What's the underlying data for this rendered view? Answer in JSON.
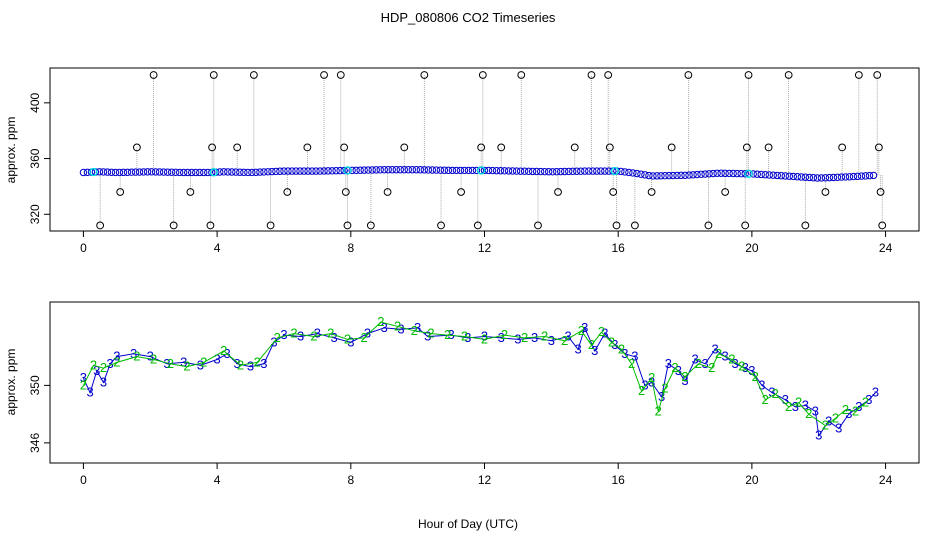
{
  "title": "HDP_080806  CO2 Timeseries",
  "xlabel": "Hour of Day (UTC)",
  "colors": {
    "cyan": "#00e0e0",
    "blue": "#0000cc",
    "green": "#00bb00",
    "black": "#000000",
    "gray": "#999999"
  },
  "chart_data": [
    {
      "type": "scatter",
      "panel": "top",
      "ylabel": "approx. ppm",
      "xlim": [
        -1,
        25
      ],
      "ylim": [
        308,
        425
      ],
      "x_ticks": [
        0,
        4,
        8,
        12,
        16,
        20,
        24
      ],
      "y_ticks": [
        320,
        360,
        400
      ],
      "x_tick_labels": [
        "0",
        "4",
        "8",
        "12",
        "16",
        "20",
        "24"
      ],
      "y_tick_labels": [
        "320",
        "360",
        "400"
      ],
      "baseline": [
        [
          0,
          350
        ],
        [
          0.5,
          350.5
        ],
        [
          1,
          350
        ],
        [
          2,
          350.5
        ],
        [
          3,
          350
        ],
        [
          3.8,
          350
        ],
        [
          4.2,
          350.5
        ],
        [
          5,
          350
        ],
        [
          6,
          351
        ],
        [
          7,
          351
        ],
        [
          8,
          351.5
        ],
        [
          9,
          352
        ],
        [
          10,
          352
        ],
        [
          11,
          351.5
        ],
        [
          12,
          351.5
        ],
        [
          13,
          351
        ],
        [
          14,
          350.5
        ],
        [
          15,
          351
        ],
        [
          16,
          351
        ],
        [
          16.5,
          349.5
        ],
        [
          17,
          347.5
        ],
        [
          18,
          348
        ],
        [
          19,
          349.5
        ],
        [
          20,
          349
        ],
        [
          21,
          347.5
        ],
        [
          22,
          346
        ],
        [
          23,
          347
        ],
        [
          23.7,
          348
        ]
      ],
      "spikes": [
        [
          0.5,
          312
        ],
        [
          1.1,
          336
        ],
        [
          1.6,
          368
        ],
        [
          2.1,
          420
        ],
        [
          2.7,
          312
        ],
        [
          3.2,
          336
        ],
        [
          3.8,
          312
        ],
        [
          3.85,
          368
        ],
        [
          3.9,
          420
        ],
        [
          4.6,
          368
        ],
        [
          5.1,
          420
        ],
        [
          5.6,
          312
        ],
        [
          6.1,
          336
        ],
        [
          6.7,
          368
        ],
        [
          7.2,
          420
        ],
        [
          7.7,
          420
        ],
        [
          7.8,
          368
        ],
        [
          7.85,
          336
        ],
        [
          7.9,
          312
        ],
        [
          8.6,
          312
        ],
        [
          9.1,
          336
        ],
        [
          9.6,
          368
        ],
        [
          10.2,
          420
        ],
        [
          10.7,
          312
        ],
        [
          11.3,
          336
        ],
        [
          11.8,
          312
        ],
        [
          11.9,
          368
        ],
        [
          11.95,
          420
        ],
        [
          12.5,
          368
        ],
        [
          13.1,
          420
        ],
        [
          13.6,
          312
        ],
        [
          14.2,
          336
        ],
        [
          14.7,
          368
        ],
        [
          15.2,
          420
        ],
        [
          15.7,
          420
        ],
        [
          15.75,
          368
        ],
        [
          15.85,
          336
        ],
        [
          15.95,
          312
        ],
        [
          16.5,
          312
        ],
        [
          17.0,
          336
        ],
        [
          17.6,
          368
        ],
        [
          18.1,
          420
        ],
        [
          18.7,
          312
        ],
        [
          19.2,
          336
        ],
        [
          19.8,
          312
        ],
        [
          19.85,
          368
        ],
        [
          19.9,
          420
        ],
        [
          20.5,
          368
        ],
        [
          21.1,
          420
        ],
        [
          21.6,
          312
        ],
        [
          22.2,
          336
        ],
        [
          22.7,
          368
        ],
        [
          23.2,
          420
        ],
        [
          23.75,
          420
        ],
        [
          23.8,
          368
        ],
        [
          23.85,
          336
        ],
        [
          23.9,
          312
        ]
      ]
    },
    {
      "type": "line",
      "panel": "bottom",
      "ylabel": "approx. ppm",
      "xlim": [
        -1,
        25
      ],
      "ylim": [
        344.6,
        355.8
      ],
      "x_ticks": [
        0,
        4,
        8,
        12,
        16,
        20,
        24
      ],
      "y_ticks": [
        346,
        350
      ],
      "x_tick_labels": [
        "0",
        "4",
        "8",
        "12",
        "16",
        "20",
        "24"
      ],
      "y_tick_labels": [
        "346",
        "350"
      ],
      "series": [
        {
          "name": "3",
          "color": "#0000cc",
          "points": [
            [
              0,
              350.5
            ],
            [
              0.2,
              349.5
            ],
            [
              0.4,
              351
            ],
            [
              0.6,
              350.2
            ],
            [
              0.8,
              351.5
            ],
            [
              1,
              352
            ],
            [
              1.5,
              352.2
            ],
            [
              2,
              352
            ],
            [
              2.5,
              351.5
            ],
            [
              3,
              351.6
            ],
            [
              3.5,
              351.4
            ],
            [
              4,
              351.8
            ],
            [
              4.3,
              352.2
            ],
            [
              4.6,
              351.5
            ],
            [
              5,
              351.3
            ],
            [
              5.4,
              351.5
            ],
            [
              5.7,
              353
            ],
            [
              6,
              353.5
            ],
            [
              6.5,
              353.4
            ],
            [
              7,
              353.6
            ],
            [
              7.5,
              353.3
            ],
            [
              8,
              353
            ],
            [
              8.5,
              353.6
            ],
            [
              9,
              354
            ],
            [
              9.5,
              353.9
            ],
            [
              10,
              354
            ],
            [
              10.3,
              353.4
            ],
            [
              11,
              353.5
            ],
            [
              11.5,
              353.3
            ],
            [
              12,
              353.4
            ],
            [
              12.5,
              353.3
            ],
            [
              13,
              353.2
            ],
            [
              13.5,
              353.3
            ],
            [
              14,
              353.1
            ],
            [
              14.5,
              353.4
            ],
            [
              14.8,
              352.5
            ],
            [
              15,
              354
            ],
            [
              15.3,
              352.4
            ],
            [
              15.6,
              353.6
            ],
            [
              15.9,
              352.8
            ],
            [
              16.2,
              352.2
            ],
            [
              16.5,
              352
            ],
            [
              16.8,
              350
            ],
            [
              17,
              350.2
            ],
            [
              17.3,
              349.2
            ],
            [
              17.5,
              351.5
            ],
            [
              17.8,
              351
            ],
            [
              18,
              350.3
            ],
            [
              18.3,
              351.8
            ],
            [
              18.6,
              351.5
            ],
            [
              18.9,
              352.5
            ],
            [
              19.2,
              352
            ],
            [
              19.5,
              351.5
            ],
            [
              19.8,
              351.2
            ],
            [
              20,
              351
            ],
            [
              20.3,
              350
            ],
            [
              20.6,
              349.5
            ],
            [
              21,
              349
            ],
            [
              21.3,
              348.5
            ],
            [
              21.6,
              348.6
            ],
            [
              21.9,
              348.2
            ],
            [
              22,
              346.5
            ],
            [
              22.3,
              347.5
            ],
            [
              22.6,
              347
            ],
            [
              22.9,
              348
            ],
            [
              23.2,
              348.5
            ],
            [
              23.5,
              349
            ],
            [
              23.7,
              349.5
            ]
          ]
        },
        {
          "name": "2",
          "color": "#00bb00",
          "points": [
            [
              0,
              350
            ],
            [
              0.3,
              351.4
            ],
            [
              0.6,
              351.2
            ],
            [
              1,
              351.6
            ],
            [
              1.6,
              352
            ],
            [
              2.1,
              351.8
            ],
            [
              2.6,
              351.5
            ],
            [
              3.1,
              351.3
            ],
            [
              3.6,
              351.6
            ],
            [
              4.2,
              352.4
            ],
            [
              4.7,
              351.4
            ],
            [
              5.2,
              351.6
            ],
            [
              5.8,
              353.3
            ],
            [
              6.3,
              353.6
            ],
            [
              6.9,
              353.4
            ],
            [
              7.4,
              353.6
            ],
            [
              7.9,
              353.2
            ],
            [
              8.4,
              353.3
            ],
            [
              8.9,
              354.4
            ],
            [
              9.4,
              354.1
            ],
            [
              9.9,
              353.8
            ],
            [
              10.4,
              353.6
            ],
            [
              10.9,
              353.5
            ],
            [
              11.4,
              353.4
            ],
            [
              12,
              353.2
            ],
            [
              12.6,
              353.5
            ],
            [
              13.2,
              353.3
            ],
            [
              13.8,
              353.4
            ],
            [
              14.4,
              353.1
            ],
            [
              14.9,
              353.8
            ],
            [
              15.2,
              352.8
            ],
            [
              15.5,
              353.7
            ],
            [
              15.8,
              353
            ],
            [
              16.1,
              352.5
            ],
            [
              16.4,
              351.5
            ],
            [
              16.7,
              349.6
            ],
            [
              17,
              350.5
            ],
            [
              17.2,
              348.2
            ],
            [
              17.4,
              349.8
            ],
            [
              17.7,
              351.2
            ],
            [
              18,
              350.6
            ],
            [
              18.4,
              351.5
            ],
            [
              18.8,
              351.2
            ],
            [
              19,
              352.2
            ],
            [
              19.4,
              351.8
            ],
            [
              19.7,
              351.3
            ],
            [
              20.1,
              350.6
            ],
            [
              20.4,
              349
            ],
            [
              20.7,
              349.4
            ],
            [
              21.1,
              348.5
            ],
            [
              21.4,
              348.8
            ],
            [
              21.7,
              348
            ],
            [
              22.2,
              347.2
            ],
            [
              22.5,
              347.7
            ],
            [
              22.8,
              348.3
            ],
            [
              23.1,
              348.2
            ],
            [
              23.4,
              348.8
            ]
          ]
        }
      ]
    }
  ]
}
